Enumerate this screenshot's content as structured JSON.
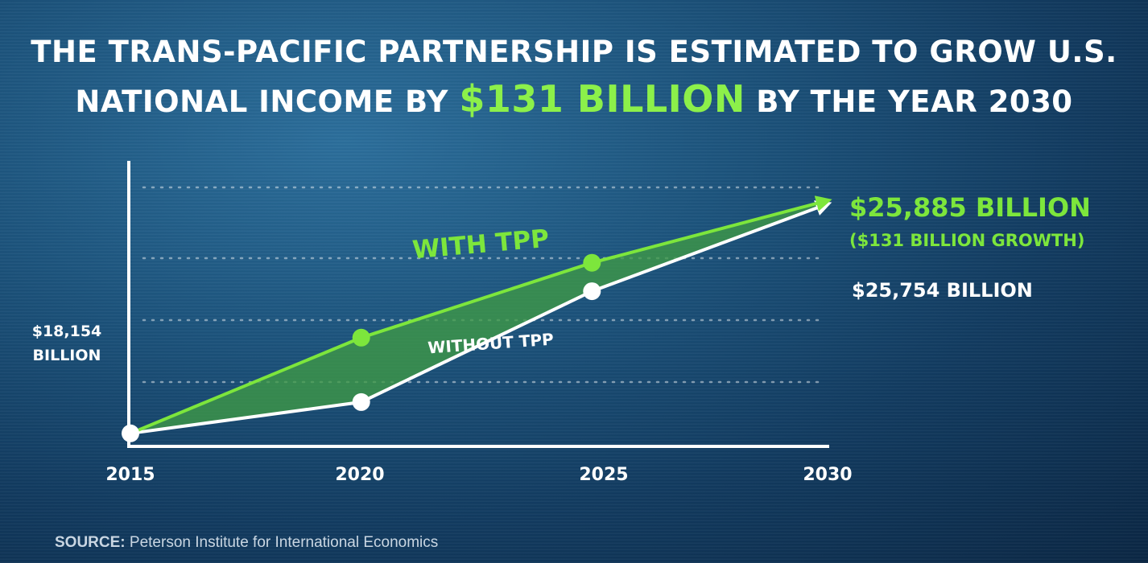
{
  "headline": {
    "line1": "THE TRANS-PACIFIC PARTNERSHIP IS ESTIMATED TO GROW U.S.",
    "line2_pre": "NATIONAL INCOME BY ",
    "line2_accent": "$131 BILLION",
    "line2_post": " BY THE YEAR 2030"
  },
  "source": {
    "label": "SOURCE:",
    "text": "Peterson Institute for International Economics"
  },
  "colors": {
    "accent": "#8cf04a",
    "with_line": "#7de63c",
    "without_line": "#ffffff",
    "fill": "#3f9a45"
  },
  "chart_data": {
    "type": "line",
    "x": [
      2015,
      2020,
      2025,
      2030
    ],
    "xlim": [
      2015,
      2030
    ],
    "ylim": [
      17800,
      26500
    ],
    "grid": "dotted horizontal",
    "series": [
      {
        "name": "WITH TPP",
        "values": [
          18154,
          21350,
          23850,
          25885
        ]
      },
      {
        "name": "WITHOUT TPP",
        "values": [
          18154,
          19200,
          22900,
          25754
        ]
      }
    ],
    "start_label": [
      "$18,154",
      "BILLION"
    ],
    "end_labels": {
      "with_main": "$25,885 BILLION",
      "with_sub": "($131 BILLION GROWTH)",
      "without": "$25,754 BILLION"
    }
  }
}
